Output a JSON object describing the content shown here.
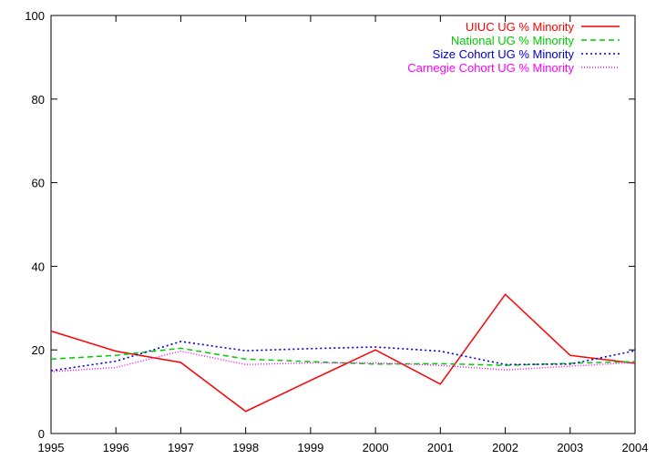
{
  "chart_data": {
    "type": "line",
    "title": "",
    "xlabel": "",
    "ylabel": "",
    "x": [
      1995,
      1996,
      1997,
      1998,
      1999,
      2000,
      2001,
      2002,
      2003,
      2004
    ],
    "xlim": [
      1995,
      2004
    ],
    "ylim": [
      0,
      100
    ],
    "yticks": [
      0,
      20,
      40,
      60,
      80,
      100
    ],
    "grid": false,
    "legend_position": "top-right",
    "series": [
      {
        "name": "UIUC UG % Minority",
        "color": "#ff0000",
        "dash": "solid",
        "values": [
          24.5,
          19.7,
          17.0,
          5.3,
          12.7,
          20.0,
          11.8,
          33.3,
          18.7,
          16.8
        ]
      },
      {
        "name": "National UG % Minority",
        "color": "#00cc00",
        "dash": "dashed",
        "values": [
          17.8,
          18.7,
          20.4,
          17.8,
          17.2,
          16.6,
          16.7,
          16.3,
          16.8,
          17.2
        ]
      },
      {
        "name": "Size Cohort UG % Minority",
        "color": "#0000cc",
        "dash": "dotted",
        "values": [
          15.0,
          17.3,
          22.0,
          19.8,
          20.3,
          20.7,
          19.7,
          16.5,
          16.6,
          19.8
        ]
      },
      {
        "name": "Carnegie Cohort UG % Minority",
        "color": "#ff00ff",
        "dash": "fine-dotted",
        "values": [
          14.8,
          15.8,
          19.7,
          16.5,
          16.9,
          16.9,
          16.3,
          15.2,
          16.1,
          17.0
        ]
      }
    ]
  }
}
